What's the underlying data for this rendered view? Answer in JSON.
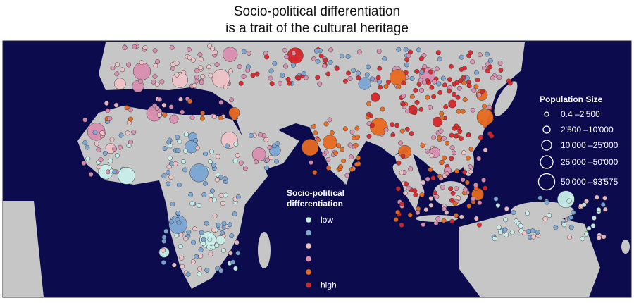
{
  "title": [
    "Socio-political differentiation",
    "is a trait of the cultural heritage"
  ],
  "differentiation_legend": {
    "title": [
      "Socio-political",
      "differentiation"
    ],
    "items": [
      {
        "label": "low",
        "color": "#c9efe9"
      },
      {
        "color": "#7ba7d4"
      },
      {
        "color": "#efc3c6"
      },
      {
        "color": "#d98fb0"
      },
      {
        "color": "#e86a1f"
      },
      {
        "label": "high",
        "color": "#d8262b"
      }
    ]
  },
  "population_legend": {
    "title": "Population Size",
    "items": [
      "0.4 –2'500",
      "2'500 –10'000",
      "10'000 –25'000",
      "25'000 –50'000",
      "50'000 –93'575"
    ]
  }
}
